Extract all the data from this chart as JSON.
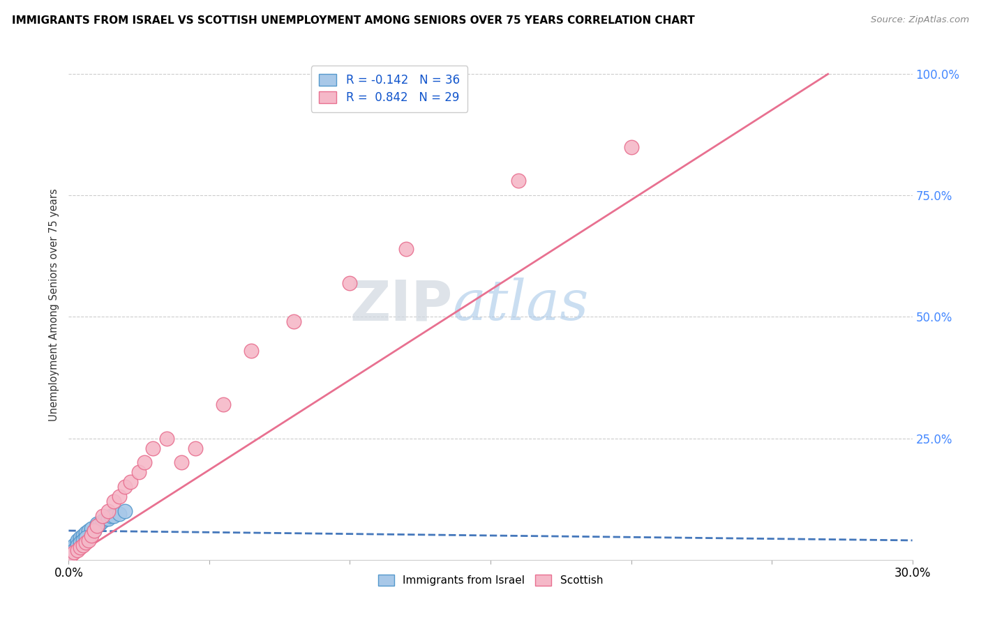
{
  "title": "IMMIGRANTS FROM ISRAEL VS SCOTTISH UNEMPLOYMENT AMONG SENIORS OVER 75 YEARS CORRELATION CHART",
  "source": "Source: ZipAtlas.com",
  "watermark_zip": "ZIP",
  "watermark_atlas": "atlas",
  "legend_blue_label": "R = -0.142   N = 36",
  "legend_pink_label": "R =  0.842   N = 29",
  "bottom_legend_blue": "Immigrants from Israel",
  "bottom_legend_pink": "Scottish",
  "blue_color": "#a8c8e8",
  "blue_edge_color": "#5599cc",
  "pink_color": "#f5b8c8",
  "pink_edge_color": "#e87090",
  "blue_line_color": "#4477bb",
  "pink_line_color": "#e87090",
  "blue_scatter_x": [
    0.001,
    0.002,
    0.002,
    0.003,
    0.003,
    0.003,
    0.004,
    0.004,
    0.004,
    0.005,
    0.005,
    0.005,
    0.006,
    0.006,
    0.006,
    0.007,
    0.007,
    0.008,
    0.008,
    0.009,
    0.01,
    0.01,
    0.011,
    0.012,
    0.013,
    0.014,
    0.015,
    0.016,
    0.018,
    0.02,
    0.001,
    0.002,
    0.003,
    0.004,
    0.005,
    0.006
  ],
  "blue_scatter_y": [
    0.02,
    0.025,
    0.03,
    0.025,
    0.035,
    0.04,
    0.03,
    0.04,
    0.045,
    0.035,
    0.045,
    0.05,
    0.04,
    0.05,
    0.055,
    0.05,
    0.06,
    0.055,
    0.065,
    0.06,
    0.07,
    0.075,
    0.075,
    0.08,
    0.085,
    0.085,
    0.09,
    0.09,
    0.095,
    0.1,
    0.015,
    0.02,
    0.03,
    0.035,
    0.04,
    0.045
  ],
  "pink_scatter_x": [
    0.001,
    0.002,
    0.003,
    0.004,
    0.005,
    0.006,
    0.007,
    0.008,
    0.009,
    0.01,
    0.012,
    0.014,
    0.016,
    0.018,
    0.02,
    0.022,
    0.025,
    0.027,
    0.03,
    0.035,
    0.04,
    0.045,
    0.055,
    0.065,
    0.08,
    0.1,
    0.12,
    0.16,
    0.2
  ],
  "pink_scatter_y": [
    0.01,
    0.015,
    0.02,
    0.025,
    0.03,
    0.035,
    0.04,
    0.05,
    0.06,
    0.07,
    0.09,
    0.1,
    0.12,
    0.13,
    0.15,
    0.16,
    0.18,
    0.2,
    0.23,
    0.25,
    0.2,
    0.23,
    0.32,
    0.43,
    0.49,
    0.57,
    0.64,
    0.78,
    0.85
  ],
  "blue_line_x": [
    0.0,
    0.3
  ],
  "blue_line_y": [
    0.06,
    0.04
  ],
  "pink_line_x": [
    0.0,
    0.27
  ],
  "pink_line_y": [
    0.0,
    1.0
  ],
  "xlim": [
    0.0,
    0.3
  ],
  "ylim": [
    0.0,
    1.05
  ],
  "x_ticks": [
    0.0,
    0.05,
    0.1,
    0.15,
    0.2,
    0.25,
    0.3
  ],
  "y_ticks": [
    0.0,
    0.25,
    0.5,
    0.75,
    1.0
  ],
  "y_tick_labels": [
    "",
    "25.0%",
    "50.0%",
    "75.0%",
    "100.0%"
  ],
  "figsize": [
    14.06,
    8.92
  ],
  "dpi": 100
}
